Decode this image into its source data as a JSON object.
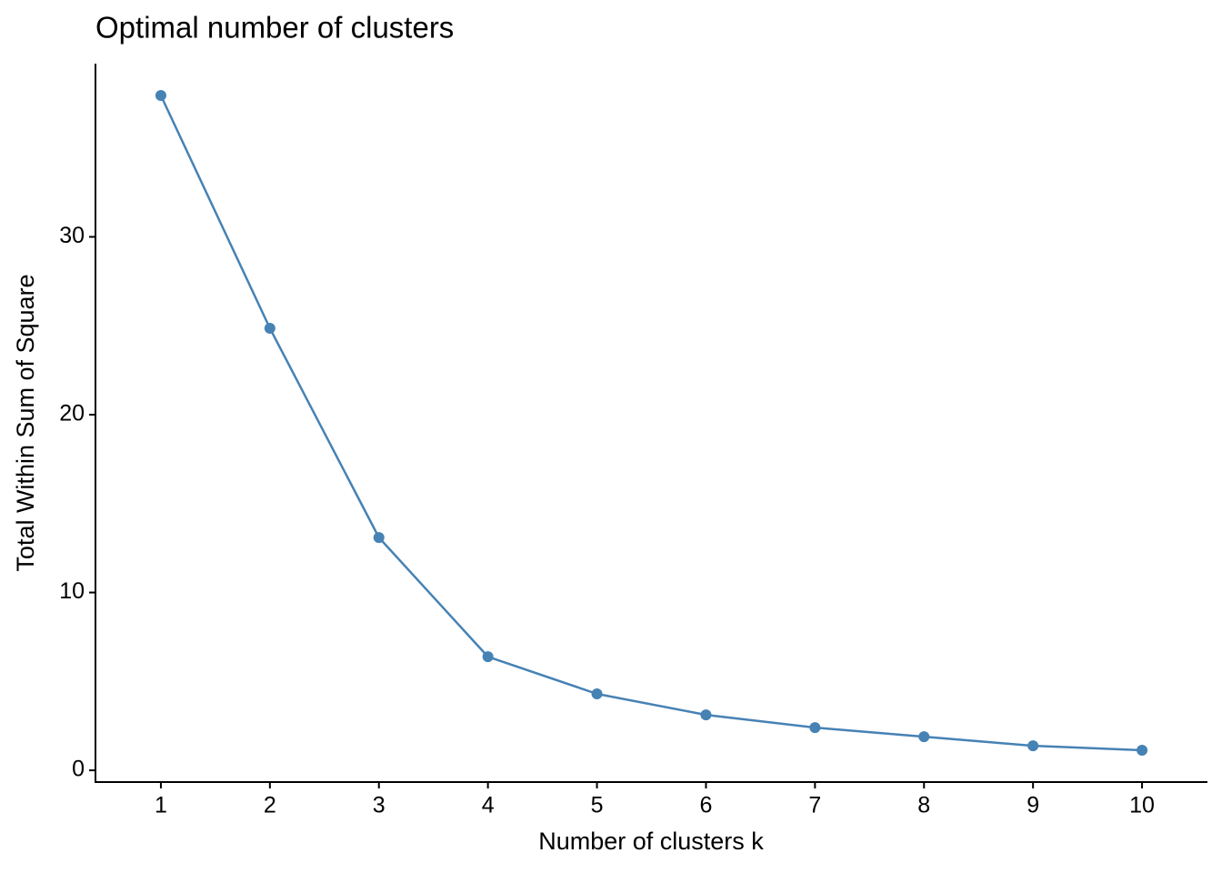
{
  "chart_data": {
    "type": "line",
    "title": "Optimal number of clusters",
    "x_label": "Number of clusters k",
    "y_label": "Total Within Sum of Square",
    "categories": [
      "1",
      "2",
      "3",
      "4",
      "5",
      "6",
      "7",
      "8",
      "9",
      "10"
    ],
    "values": [
      37.95,
      24.86,
      13.09,
      6.39,
      4.3,
      3.12,
      2.4,
      1.89,
      1.38,
      1.13
    ],
    "color": "#4682b4",
    "ylim": [
      -0.66,
      39.74
    ],
    "yticks": [
      0,
      10,
      20,
      30
    ],
    "grid": false
  }
}
